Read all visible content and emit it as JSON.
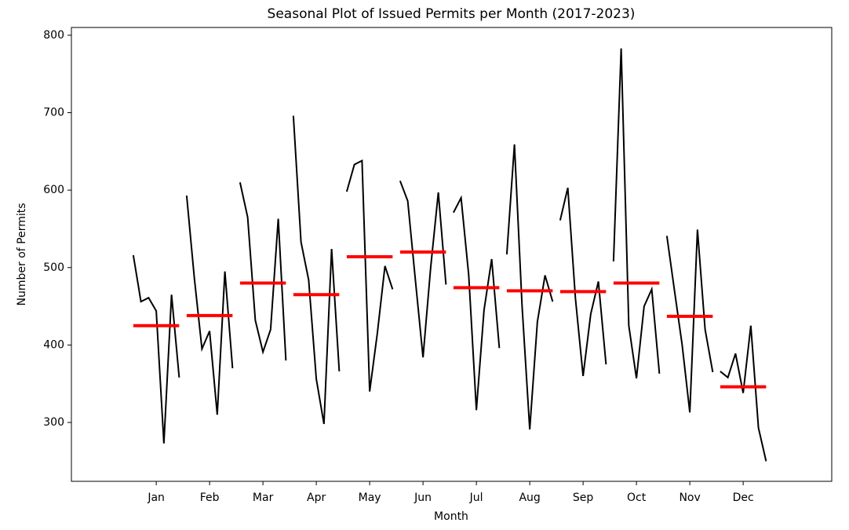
{
  "chart_data": {
    "type": "seasonal",
    "title": "Seasonal Plot of Issued Permits per Month (2017-2023)",
    "x_label": "Month",
    "y_label": "Number of Permits",
    "categories": [
      "Jan",
      "Feb",
      "Mar",
      "Apr",
      "May",
      "Jun",
      "Jul",
      "Aug",
      "Sep",
      "Oct",
      "Nov",
      "Dec"
    ],
    "values": [
      [
        516,
        456,
        461,
        444,
        273,
        465,
        358
      ],
      [
        593,
        487,
        395,
        418,
        310,
        495,
        370
      ],
      [
        610,
        565,
        432,
        391,
        420,
        563,
        380
      ],
      [
        696,
        533,
        484,
        356,
        298,
        524,
        366
      ],
      [
        598,
        633,
        638,
        340,
        415,
        502,
        472
      ],
      [
        612,
        586,
        484,
        384,
        500,
        597,
        478
      ],
      [
        571,
        590,
        490,
        316,
        445,
        511,
        396
      ],
      [
        517,
        659,
        450,
        291,
        430,
        490,
        456
      ],
      [
        561,
        603,
        460,
        360,
        440,
        482,
        375
      ],
      [
        508,
        783,
        425,
        357,
        450,
        472,
        363
      ],
      [
        541,
        470,
        400,
        313,
        549,
        420,
        365
      ],
      [
        366,
        358,
        389,
        338,
        425,
        293,
        250
      ]
    ],
    "means": [
      425,
      438,
      480,
      465,
      514,
      520,
      474,
      470,
      469,
      480,
      437,
      346
    ],
    "color": "#000000",
    "mean_color": "#ff0000",
    "xlim": [
      -1.59,
      12.66
    ],
    "ylim": [
      224,
      810
    ],
    "yticks": [
      300,
      400,
      500,
      600,
      700,
      800
    ]
  }
}
